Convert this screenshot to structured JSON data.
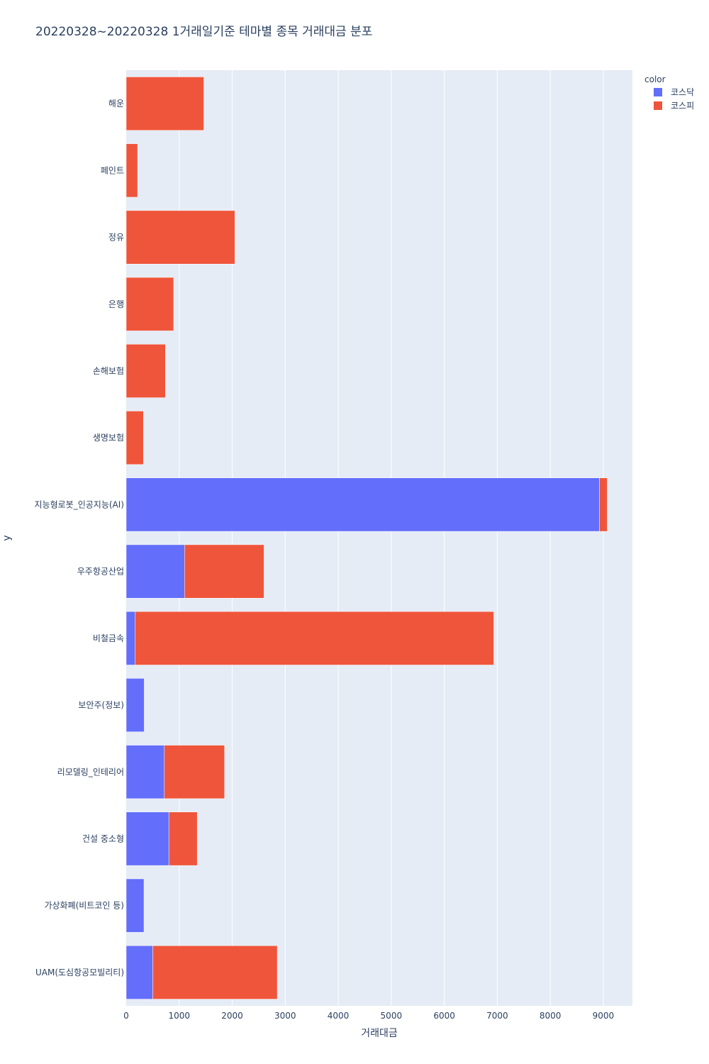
{
  "chart_data": {
    "type": "bar",
    "orientation": "horizontal",
    "barmode": "stack",
    "title": "20220328~20220328 1거래일기준 테마별 종목 거래대금 분포",
    "xlabel": "거래대금",
    "ylabel": "y",
    "xlim": [
      0,
      9550
    ],
    "xticks": [
      0,
      1000,
      2000,
      3000,
      4000,
      5000,
      6000,
      7000,
      8000,
      9000
    ],
    "grid": true,
    "legend": {
      "title": "color",
      "position": "top-right"
    },
    "categories": [
      "해운",
      "페인트",
      "정유",
      "은행",
      "손해보험",
      "생명보험",
      "지능형로봇_인공지능(AI)",
      "우주항공산업",
      "비철금속",
      "보안주(정보)",
      "리모델링_인테리어",
      "건설 중소형",
      "가상화폐(비트코인 등)",
      "UAM(도심항공모빌리티)"
    ],
    "series": [
      {
        "name": "코스닥",
        "color": "#636efa",
        "values": [
          0,
          0,
          0,
          0,
          0,
          0,
          8930,
          1100,
          165,
          340,
          720,
          805,
          335,
          500
        ]
      },
      {
        "name": "코스피",
        "color": "#ef553b",
        "values": [
          1465,
          215,
          2050,
          895,
          740,
          325,
          145,
          1500,
          6770,
          0,
          1135,
          535,
          0,
          2350
        ]
      }
    ]
  }
}
